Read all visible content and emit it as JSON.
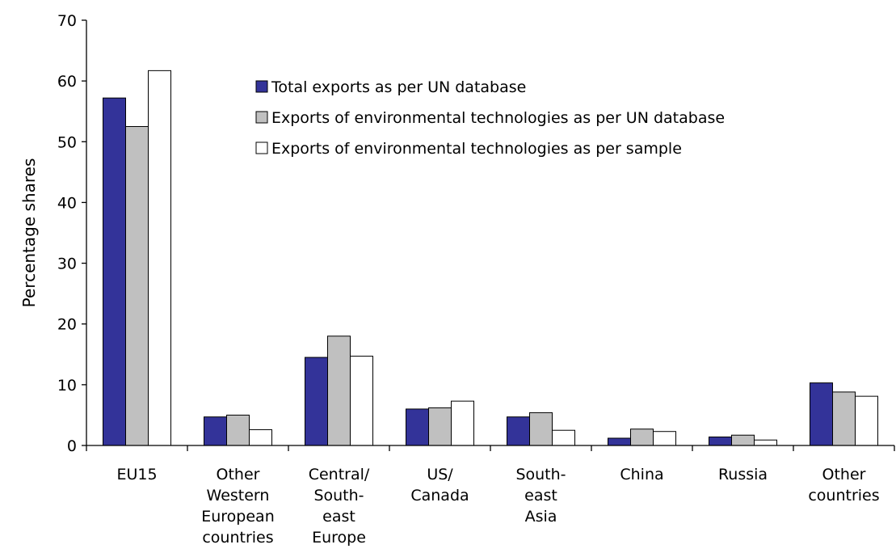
{
  "chart_data": {
    "type": "bar",
    "title": "",
    "xlabel": "",
    "ylabel": "Percentage shares",
    "ylim": [
      0,
      70
    ],
    "yticks": [
      0,
      10,
      20,
      30,
      40,
      50,
      60,
      70
    ],
    "grid": false,
    "legend_position": "top-right",
    "categories": [
      [
        "EU15"
      ],
      [
        "Other",
        "Western",
        "European",
        "countries"
      ],
      [
        "Central/",
        "South-",
        "east",
        "Europe"
      ],
      [
        "US/",
        "Canada"
      ],
      [
        "South-",
        "east",
        "Asia"
      ],
      [
        "China"
      ],
      [
        "Russia"
      ],
      [
        "Other",
        "countries"
      ]
    ],
    "series": [
      {
        "name": "Total exports as per UN database",
        "color": "#333399",
        "values": [
          57.2,
          4.7,
          14.5,
          6.0,
          4.7,
          1.2,
          1.4,
          10.3
        ]
      },
      {
        "name": "Exports of environmental technologies as per UN database",
        "color": "#c0c0c0",
        "values": [
          52.5,
          5.0,
          18.0,
          6.2,
          5.4,
          2.7,
          1.7,
          8.8
        ]
      },
      {
        "name": "Exports of environmental technologies as per sample",
        "color": "#ffffff",
        "values": [
          61.7,
          2.6,
          14.7,
          7.3,
          2.5,
          2.3,
          0.9,
          8.1
        ]
      }
    ]
  }
}
